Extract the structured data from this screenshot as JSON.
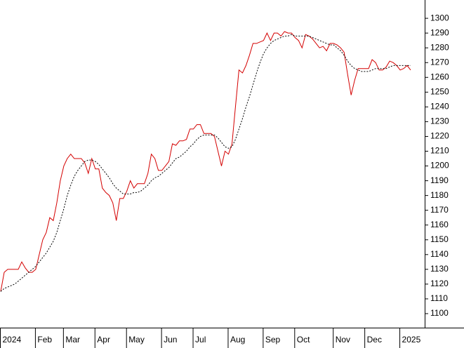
{
  "chart_data": {
    "type": "line",
    "categories": [
      "2024",
      null,
      null,
      null,
      null,
      null,
      null,
      null,
      null,
      null,
      "Feb",
      null,
      null,
      null,
      null,
      null,
      null,
      null,
      "Mar",
      null,
      null,
      null,
      null,
      null,
      null,
      null,
      null,
      "Apr",
      null,
      null,
      null,
      null,
      null,
      null,
      null,
      null,
      "May",
      null,
      null,
      null,
      null,
      null,
      null,
      null,
      null,
      null,
      "Jun",
      null,
      null,
      null,
      null,
      null,
      null,
      null,
      null,
      "Jul",
      null,
      null,
      null,
      null,
      null,
      null,
      null,
      null,
      null,
      "Aug",
      null,
      null,
      null,
      null,
      null,
      null,
      null,
      null,
      null,
      "Sep",
      null,
      null,
      null,
      null,
      null,
      null,
      null,
      null,
      "Oct",
      null,
      null,
      null,
      null,
      null,
      null,
      null,
      null,
      null,
      null,
      "Nov",
      null,
      null,
      null,
      null,
      null,
      null,
      null,
      null,
      "Dec",
      null,
      null,
      null,
      null,
      null,
      null,
      null,
      null,
      null,
      "2025",
      null,
      null,
      null
    ],
    "series": [
      {
        "color": "#d40000",
        "line_style": "solid",
        "values": [
          1115,
          1128,
          1130,
          1130,
          1130,
          1130,
          1135,
          1131,
          1128,
          1128,
          1130,
          1140,
          1150,
          1155,
          1165,
          1163,
          1175,
          1190,
          1200,
          1205,
          1208,
          1205,
          1205,
          1205,
          1202,
          1195,
          1205,
          1198,
          1198,
          1185,
          1182,
          1180,
          1175,
          1163,
          1178,
          1178,
          1183,
          1190,
          1185,
          1188,
          1188,
          1188,
          1195,
          1208,
          1205,
          1197,
          1197,
          1200,
          1203,
          1215,
          1214,
          1217,
          1217,
          1218,
          1225,
          1225,
          1228,
          1228,
          1222,
          1222,
          1222,
          1220,
          1210,
          1200,
          1210,
          1208,
          1215,
          1240,
          1265,
          1263,
          1268,
          1275,
          1283,
          1283,
          1284,
          1285,
          1290,
          1285,
          1290,
          1290,
          1288,
          1291,
          1290,
          1290,
          1287,
          1285,
          1280,
          1289,
          1288,
          1286,
          1283,
          1280,
          1281,
          1278,
          1283,
          1283,
          1282,
          1280,
          1277,
          1262,
          1248,
          1258,
          1266,
          1266,
          1266,
          1266,
          1272,
          1270,
          1265,
          1265,
          1267,
          1271,
          1270,
          1268,
          1265,
          1266,
          1268,
          1265
        ]
      },
      {
        "color": "#000000",
        "line_style": "dashed",
        "values": [
          1115,
          1117,
          1118,
          1119,
          1120,
          1122,
          1124,
          1126,
          1128,
          1130,
          1132,
          1135,
          1138,
          1141,
          1145,
          1149,
          1155,
          1163,
          1171,
          1180,
          1187,
          1193,
          1197,
          1200,
          1203,
          1204,
          1204,
          1203,
          1201,
          1198,
          1195,
          1192,
          1188,
          1185,
          1183,
          1181,
          1181,
          1181,
          1182,
          1182,
          1183,
          1185,
          1187,
          1190,
          1192,
          1193,
          1195,
          1197,
          1199,
          1202,
          1205,
          1206,
          1208,
          1210,
          1213,
          1215,
          1218,
          1220,
          1221,
          1221,
          1221,
          1221,
          1219,
          1216,
          1213,
          1212,
          1213,
          1218,
          1225,
          1232,
          1240,
          1247,
          1255,
          1263,
          1270,
          1276,
          1280,
          1283,
          1285,
          1286,
          1287,
          1288,
          1288,
          1289,
          1288,
          1288,
          1288,
          1288,
          1288,
          1287,
          1286,
          1285,
          1284,
          1283,
          1282,
          1282,
          1280,
          1278,
          1275,
          1271,
          1268,
          1266,
          1265,
          1264,
          1264,
          1264,
          1265,
          1266,
          1266,
          1266,
          1266,
          1267,
          1268,
          1268,
          1268,
          1268,
          1268,
          1268
        ]
      }
    ],
    "ylim": [
      1090.5,
      1312.4
    ],
    "yticks": [
      1100,
      1110,
      1120,
      1130,
      1140,
      1150,
      1160,
      1170,
      1180,
      1190,
      1200,
      1210,
      1220,
      1230,
      1240,
      1250,
      1260,
      1270,
      1280,
      1290,
      1300
    ],
    "y_axis_side": "right",
    "grid": false
  }
}
